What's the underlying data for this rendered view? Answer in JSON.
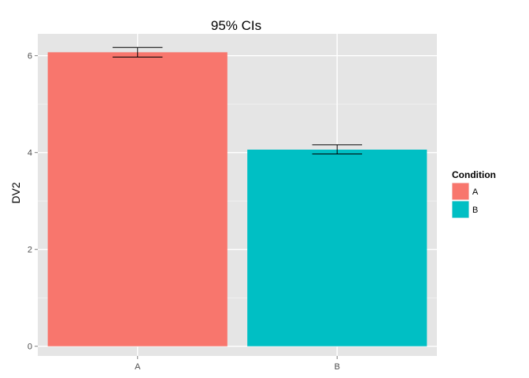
{
  "chart_data": {
    "type": "bar",
    "title": "95% CIs",
    "xlabel": "",
    "ylabel": "DV2",
    "categories": [
      "A",
      "B"
    ],
    "values": [
      6.07,
      4.06
    ],
    "error_bars": [
      {
        "category": "A",
        "lower": 5.97,
        "upper": 6.17
      },
      {
        "category": "B",
        "lower": 3.97,
        "upper": 4.16
      }
    ],
    "ylim": [
      -0.2,
      6.45
    ],
    "yticks": [
      0,
      2,
      4,
      6
    ],
    "y_tick_labels": [
      "0",
      "2",
      "4",
      "6"
    ],
    "grid": true,
    "legend": {
      "title": "Condition",
      "position": "right",
      "entries": [
        {
          "label": "A",
          "color": "#F8766D"
        },
        {
          "label": "B",
          "color": "#00BFC4"
        }
      ]
    },
    "colors": {
      "A": "#F8766D",
      "B": "#00BFC4",
      "panel_background": "#E5E5E5",
      "grid_major": "#FFFFFF",
      "grid_minor": "#F2F2F2"
    }
  }
}
